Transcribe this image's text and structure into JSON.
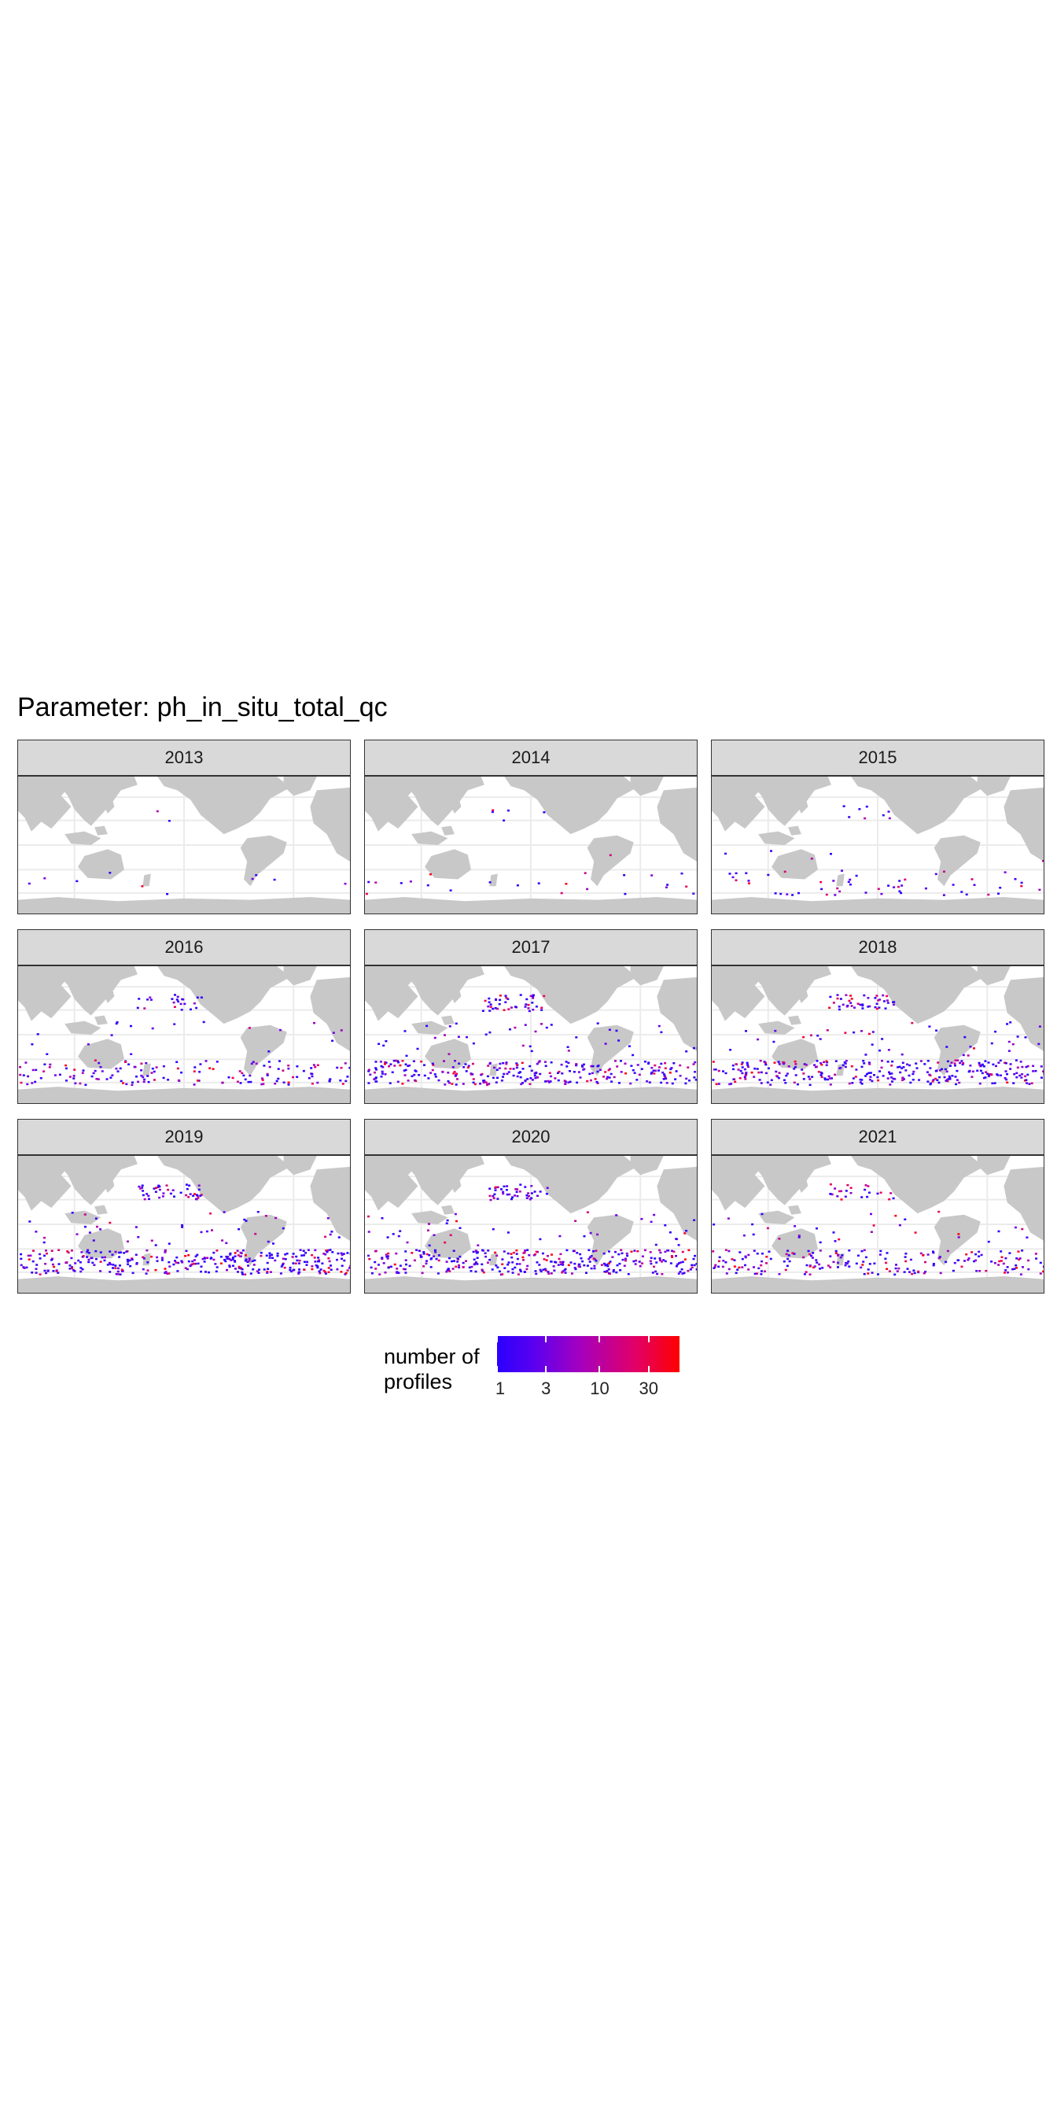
{
  "title": "Parameter: ph_in_situ_total_qc",
  "colors": {
    "land": "#c8c8c8",
    "ocean": "#ffffff",
    "grid": "#ebebeb",
    "strip": "#d9d9d9",
    "low": "#2a00ff",
    "high": "#ff0000"
  },
  "panels": [
    {
      "year": "2013",
      "density": 0.02
    },
    {
      "year": "2014",
      "density": 0.06
    },
    {
      "year": "2015",
      "density": 0.15
    },
    {
      "year": "2016",
      "density": 0.45
    },
    {
      "year": "2017",
      "density": 0.85
    },
    {
      "year": "2018",
      "density": 0.9
    },
    {
      "year": "2019",
      "density": 1.0
    },
    {
      "year": "2020",
      "density": 0.95
    },
    {
      "year": "2021",
      "density": 0.6
    }
  ],
  "legend": {
    "title_line1": "number of",
    "title_line2": "profiles",
    "ticks": [
      "1",
      "3",
      "10",
      "30"
    ],
    "tick_values": [
      1,
      3,
      10,
      30
    ],
    "range": [
      1,
      60
    ],
    "scale": "log"
  }
}
